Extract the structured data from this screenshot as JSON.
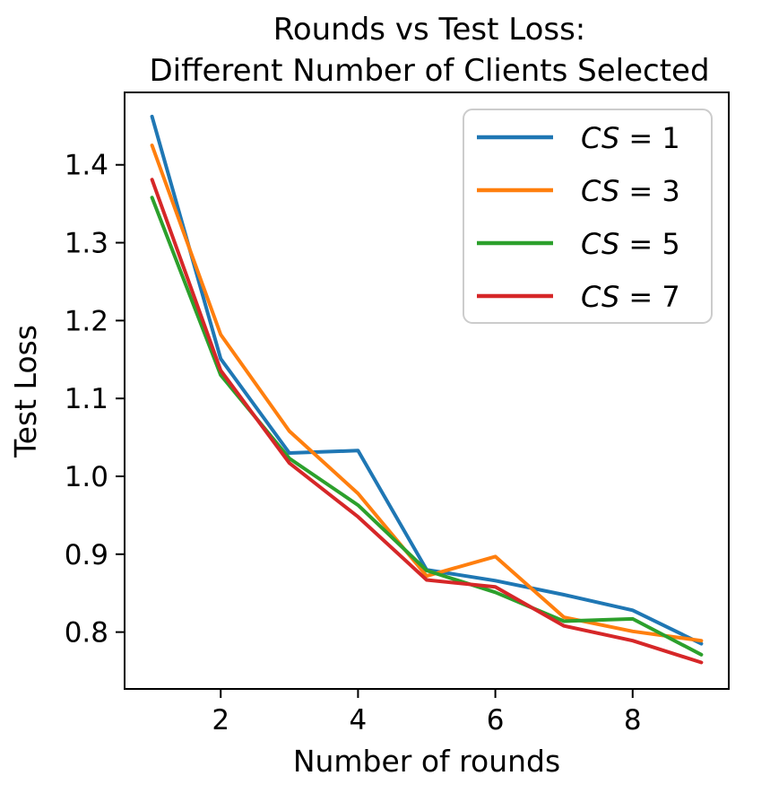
{
  "title": {
    "line1": "Rounds vs Test Loss:",
    "line2": "Different Number of Clients Selected"
  },
  "chart_data": {
    "type": "line",
    "title": "Rounds vs Test Loss:\nDifferent Number of Clients Selected",
    "xlabel": "Number of rounds",
    "ylabel": "Test Loss",
    "x": [
      1,
      2,
      3,
      4,
      5,
      6,
      7,
      8,
      9
    ],
    "series": [
      {
        "name": "CS = 1",
        "math_var": "CS",
        "eq_rest": " = 1",
        "color": "#1f77b4",
        "values": [
          1.462,
          1.151,
          1.03,
          1.033,
          0.88,
          0.866,
          0.848,
          0.828,
          0.785
        ]
      },
      {
        "name": "CS = 3",
        "math_var": "CS",
        "eq_rest": " = 3",
        "color": "#ff7f0e",
        "values": [
          1.425,
          1.182,
          1.058,
          0.978,
          0.872,
          0.897,
          0.819,
          0.801,
          0.789
        ]
      },
      {
        "name": "CS = 5",
        "math_var": "CS",
        "eq_rest": " = 5",
        "color": "#2ca02c",
        "values": [
          1.358,
          1.13,
          1.023,
          0.963,
          0.879,
          0.851,
          0.814,
          0.817,
          0.771
        ]
      },
      {
        "name": "CS = 7",
        "math_var": "CS",
        "eq_rest": " = 7",
        "color": "#d62728",
        "values": [
          1.381,
          1.136,
          1.017,
          0.948,
          0.867,
          0.858,
          0.808,
          0.789,
          0.761
        ]
      }
    ],
    "xticks": [
      2,
      4,
      6,
      8
    ],
    "yticks": [
      0.8,
      0.9,
      1.0,
      1.1,
      1.2,
      1.3,
      1.4
    ],
    "xlim": [
      0.6,
      9.4
    ],
    "ylim": [
      0.727,
      1.493
    ],
    "grid": false,
    "legend_position": "upper right",
    "axis_color": "#000000",
    "background": "#ffffff"
  }
}
